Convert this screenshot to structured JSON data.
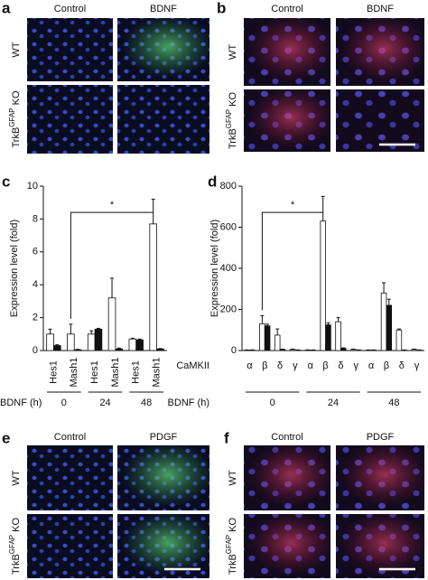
{
  "figure": {
    "a": {
      "label": "a",
      "columns": [
        "Control",
        "BDNF"
      ],
      "rows": [
        "WT",
        {
          "base": "TrkB",
          "sup": "GFAP",
          "rest": "KO"
        }
      ]
    },
    "b": {
      "label": "b",
      "columns": [
        "Control",
        "BDNF"
      ],
      "rows": [
        "WT",
        {
          "base": "TrkB",
          "sup": "GFAP",
          "rest": "KO"
        }
      ]
    },
    "e": {
      "label": "e",
      "columns": [
        "Control",
        "PDGF"
      ],
      "rows": [
        "WT",
        {
          "base": "TrkB",
          "sup": "GFAP",
          "rest": "KO"
        }
      ]
    },
    "f": {
      "label": "f",
      "columns": [
        "Control",
        "PDGF"
      ],
      "rows": [
        "WT",
        {
          "base": "TrkB",
          "sup": "GFAP",
          "rest": "KO"
        }
      ]
    }
  },
  "chart_data": [
    {
      "type": "bar",
      "panel": "c",
      "ylabel": "Expression level (fold)",
      "categories": [
        "Hes1",
        "Mash1",
        "Hes1",
        "Mash1",
        "Hes1",
        "Mash1"
      ],
      "groups": [
        "0",
        "24",
        "48"
      ],
      "group_label": "BDNF (h)",
      "series": [
        {
          "color": "#ffffff",
          "values": [
            1.0,
            1.0,
            1.0,
            3.2,
            0.7,
            7.7
          ],
          "errors": [
            0.3,
            0.6,
            0.2,
            1.2,
            0.05,
            1.5
          ]
        },
        {
          "color": "#111111",
          "values": [
            0.3,
            0.05,
            1.3,
            0.1,
            0.65,
            0.1
          ],
          "errors": [
            0.05,
            0.02,
            0.05,
            0.05,
            0.05,
            0.02
          ]
        }
      ],
      "ylim": [
        0,
        10
      ],
      "yticks": [
        0,
        2,
        4,
        6,
        8,
        10
      ],
      "annotation": {
        "text": "*",
        "between": [
          1,
          5
        ]
      }
    },
    {
      "type": "bar",
      "panel": "d",
      "ylabel": "Expression level (fold)",
      "categories": [
        "α",
        "β",
        "δ",
        "γ",
        "α",
        "β",
        "δ",
        "γ",
        "α",
        "β",
        "δ",
        "γ"
      ],
      "row_label": "CaMKII",
      "groups": [
        "0",
        "24",
        "48"
      ],
      "group_label": "BDNF (h)",
      "series": [
        {
          "color": "#ffffff",
          "values": [
            2,
            130,
            75,
            5,
            2,
            630,
            140,
            5,
            2,
            280,
            100,
            5
          ],
          "errors": [
            1,
            40,
            30,
            2,
            1,
            120,
            20,
            2,
            1,
            50,
            5,
            2
          ]
        },
        {
          "color": "#111111",
          "values": [
            2,
            120,
            5,
            2,
            2,
            125,
            10,
            2,
            2,
            220,
            2,
            2
          ],
          "errors": [
            1,
            8,
            2,
            1,
            1,
            10,
            3,
            1,
            1,
            30,
            1,
            1
          ]
        }
      ],
      "ylim": [
        0,
        800
      ],
      "yticks": [
        0,
        200,
        400,
        600,
        800
      ],
      "annotation": {
        "text": "*",
        "between": [
          1,
          5
        ]
      }
    }
  ]
}
